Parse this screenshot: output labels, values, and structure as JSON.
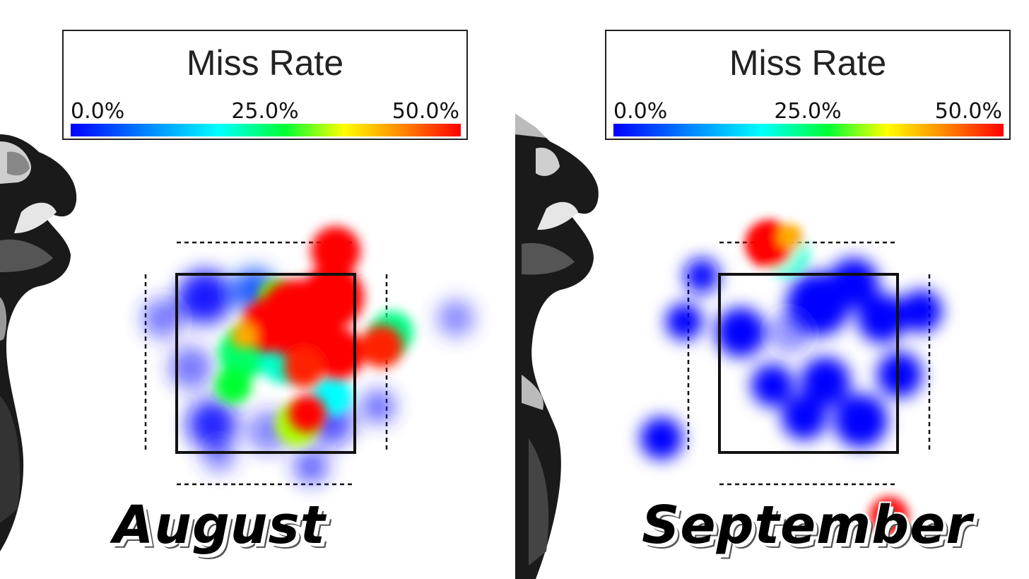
{
  "chart_data": [
    {
      "type": "heatmap",
      "title": "August",
      "legend": {
        "title": "Miss Rate",
        "ticks": [
          "0.0%",
          "25.0%",
          "50.0%"
        ],
        "range": [
          0,
          50
        ],
        "colors": [
          "#0000ff",
          "#00ffff",
          "#00ff00",
          "#ffff00",
          "#ff0000"
        ]
      },
      "grid": false
    },
    {
      "type": "heatmap",
      "title": "September",
      "legend": {
        "title": "Miss Rate",
        "ticks": [
          "0.0%",
          "25.0%",
          "50.0%"
        ],
        "range": [
          0,
          50
        ],
        "colors": [
          "#0000ff",
          "#00ffff",
          "#00ff00",
          "#ffff00",
          "#ff0000"
        ]
      },
      "grid": false
    }
  ]
}
